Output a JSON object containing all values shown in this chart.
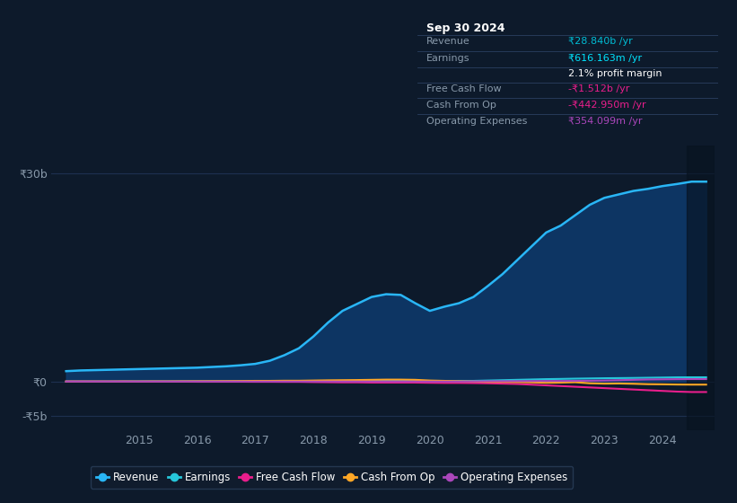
{
  "bg_color": "#0d1a2b",
  "plot_bg_color": "#0d1a2b",
  "grid_color": "#1e3050",
  "title_box": {
    "date": "Sep 30 2024",
    "rows": [
      {
        "label": "Revenue",
        "value": "₹28.840b /yr",
        "value_color": "#00bcd4",
        "label_color": "#8899aa"
      },
      {
        "label": "Earnings",
        "value": "₹616.163m /yr",
        "value_color": "#00e5ff",
        "label_color": "#8899aa"
      },
      {
        "label": "",
        "value": "2.1% profit margin",
        "value_color": "#ffffff",
        "label_color": "#8899aa"
      },
      {
        "label": "Free Cash Flow",
        "value": "-₹1.512b /yr",
        "value_color": "#e91e8c",
        "label_color": "#8899aa"
      },
      {
        "label": "Cash From Op",
        "value": "-₹442.950m /yr",
        "value_color": "#e91e8c",
        "label_color": "#8899aa"
      },
      {
        "label": "Operating Expenses",
        "value": "₹354.099m /yr",
        "value_color": "#ab47bc",
        "label_color": "#8899aa"
      }
    ]
  },
  "years": [
    2013.75,
    2014.0,
    2014.25,
    2014.5,
    2014.75,
    2015.0,
    2015.25,
    2015.5,
    2015.75,
    2016.0,
    2016.25,
    2016.5,
    2016.75,
    2017.0,
    2017.25,
    2017.5,
    2017.75,
    2018.0,
    2018.25,
    2018.5,
    2018.75,
    2019.0,
    2019.25,
    2019.5,
    2019.75,
    2020.0,
    2020.25,
    2020.5,
    2020.75,
    2021.0,
    2021.25,
    2021.5,
    2021.75,
    2022.0,
    2022.25,
    2022.5,
    2022.75,
    2023.0,
    2023.25,
    2023.5,
    2023.75,
    2024.0,
    2024.25,
    2024.5,
    2024.75
  ],
  "revenue": [
    1.5,
    1.6,
    1.65,
    1.7,
    1.75,
    1.8,
    1.85,
    1.9,
    1.95,
    2.0,
    2.1,
    2.2,
    2.35,
    2.55,
    3.0,
    3.8,
    4.8,
    6.5,
    8.5,
    10.2,
    11.2,
    12.2,
    12.6,
    12.5,
    11.3,
    10.2,
    10.8,
    11.3,
    12.2,
    13.8,
    15.5,
    17.5,
    19.5,
    21.5,
    22.5,
    24.0,
    25.5,
    26.5,
    27.0,
    27.5,
    27.8,
    28.2,
    28.5,
    28.84,
    28.84
  ],
  "earnings": [
    0.02,
    0.02,
    0.02,
    0.02,
    0.03,
    0.03,
    0.03,
    0.03,
    0.04,
    0.04,
    0.04,
    0.04,
    0.04,
    0.05,
    0.05,
    0.05,
    0.05,
    0.08,
    0.1,
    0.1,
    0.1,
    0.12,
    0.12,
    0.12,
    0.1,
    0.08,
    0.08,
    0.1,
    0.1,
    0.15,
    0.2,
    0.25,
    0.3,
    0.35,
    0.38,
    0.42,
    0.45,
    0.48,
    0.5,
    0.52,
    0.55,
    0.58,
    0.61,
    0.616,
    0.616
  ],
  "free_cash_flow": [
    0.0,
    0.0,
    0.0,
    0.0,
    0.0,
    -0.02,
    -0.02,
    -0.02,
    -0.02,
    -0.03,
    -0.03,
    -0.03,
    -0.03,
    -0.04,
    -0.04,
    -0.05,
    -0.05,
    -0.08,
    -0.1,
    -0.12,
    -0.12,
    -0.15,
    -0.15,
    -0.15,
    -0.15,
    -0.18,
    -0.2,
    -0.2,
    -0.22,
    -0.25,
    -0.3,
    -0.35,
    -0.45,
    -0.55,
    -0.65,
    -0.75,
    -0.85,
    -0.95,
    -1.05,
    -1.15,
    -1.25,
    -1.35,
    -1.45,
    -1.512,
    -1.512
  ],
  "cash_from_op": [
    0.01,
    0.01,
    0.01,
    0.01,
    0.02,
    0.02,
    0.03,
    0.03,
    0.04,
    0.05,
    0.06,
    0.07,
    0.08,
    0.1,
    0.1,
    0.12,
    0.12,
    0.15,
    0.18,
    0.2,
    0.22,
    0.25,
    0.28,
    0.28,
    0.25,
    0.15,
    0.1,
    0.05,
    0.0,
    -0.05,
    -0.05,
    -0.08,
    -0.12,
    -0.18,
    -0.15,
    -0.1,
    -0.25,
    -0.3,
    -0.28,
    -0.32,
    -0.38,
    -0.4,
    -0.43,
    -0.443,
    -0.443
  ],
  "operating_expenses": [
    0.0,
    0.0,
    0.0,
    0.0,
    0.0,
    0.0,
    0.0,
    0.0,
    0.0,
    0.0,
    0.0,
    0.0,
    0.0,
    0.0,
    0.0,
    0.0,
    0.0,
    0.0,
    0.0,
    0.0,
    0.0,
    0.0,
    0.0,
    0.0,
    0.0,
    0.0,
    0.0,
    0.0,
    0.02,
    0.04,
    0.05,
    0.06,
    0.07,
    0.08,
    0.08,
    0.1,
    0.12,
    0.15,
    0.2,
    0.25,
    0.3,
    0.32,
    0.34,
    0.354,
    0.354
  ],
  "revenue_color": "#29b6f6",
  "earnings_color": "#26c6da",
  "free_cash_flow_color": "#e91e8c",
  "cash_from_op_color": "#ffa726",
  "operating_expenses_color": "#ab47bc",
  "revenue_fill_alpha": 0.6,
  "tick_color": "#8899aa",
  "ytick_labels": [
    "-₹5b",
    "₹0",
    "₹30b"
  ],
  "ytick_values": [
    -5,
    0,
    30
  ],
  "ylim": [
    -7,
    34
  ],
  "xlim": [
    2013.5,
    2024.9
  ],
  "xtick_years": [
    2015,
    2016,
    2017,
    2018,
    2019,
    2020,
    2021,
    2022,
    2023,
    2024
  ],
  "legend_items": [
    {
      "label": "Revenue",
      "color": "#29b6f6"
    },
    {
      "label": "Earnings",
      "color": "#26c6da"
    },
    {
      "label": "Free Cash Flow",
      "color": "#e91e8c"
    },
    {
      "label": "Cash From Op",
      "color": "#ffa726"
    },
    {
      "label": "Operating Expenses",
      "color": "#ab47bc"
    }
  ],
  "legend_bg": "#111d2e",
  "legend_border": "#2a3f5a",
  "dark_band_start": 2024.42,
  "dark_band_end": 2024.9
}
